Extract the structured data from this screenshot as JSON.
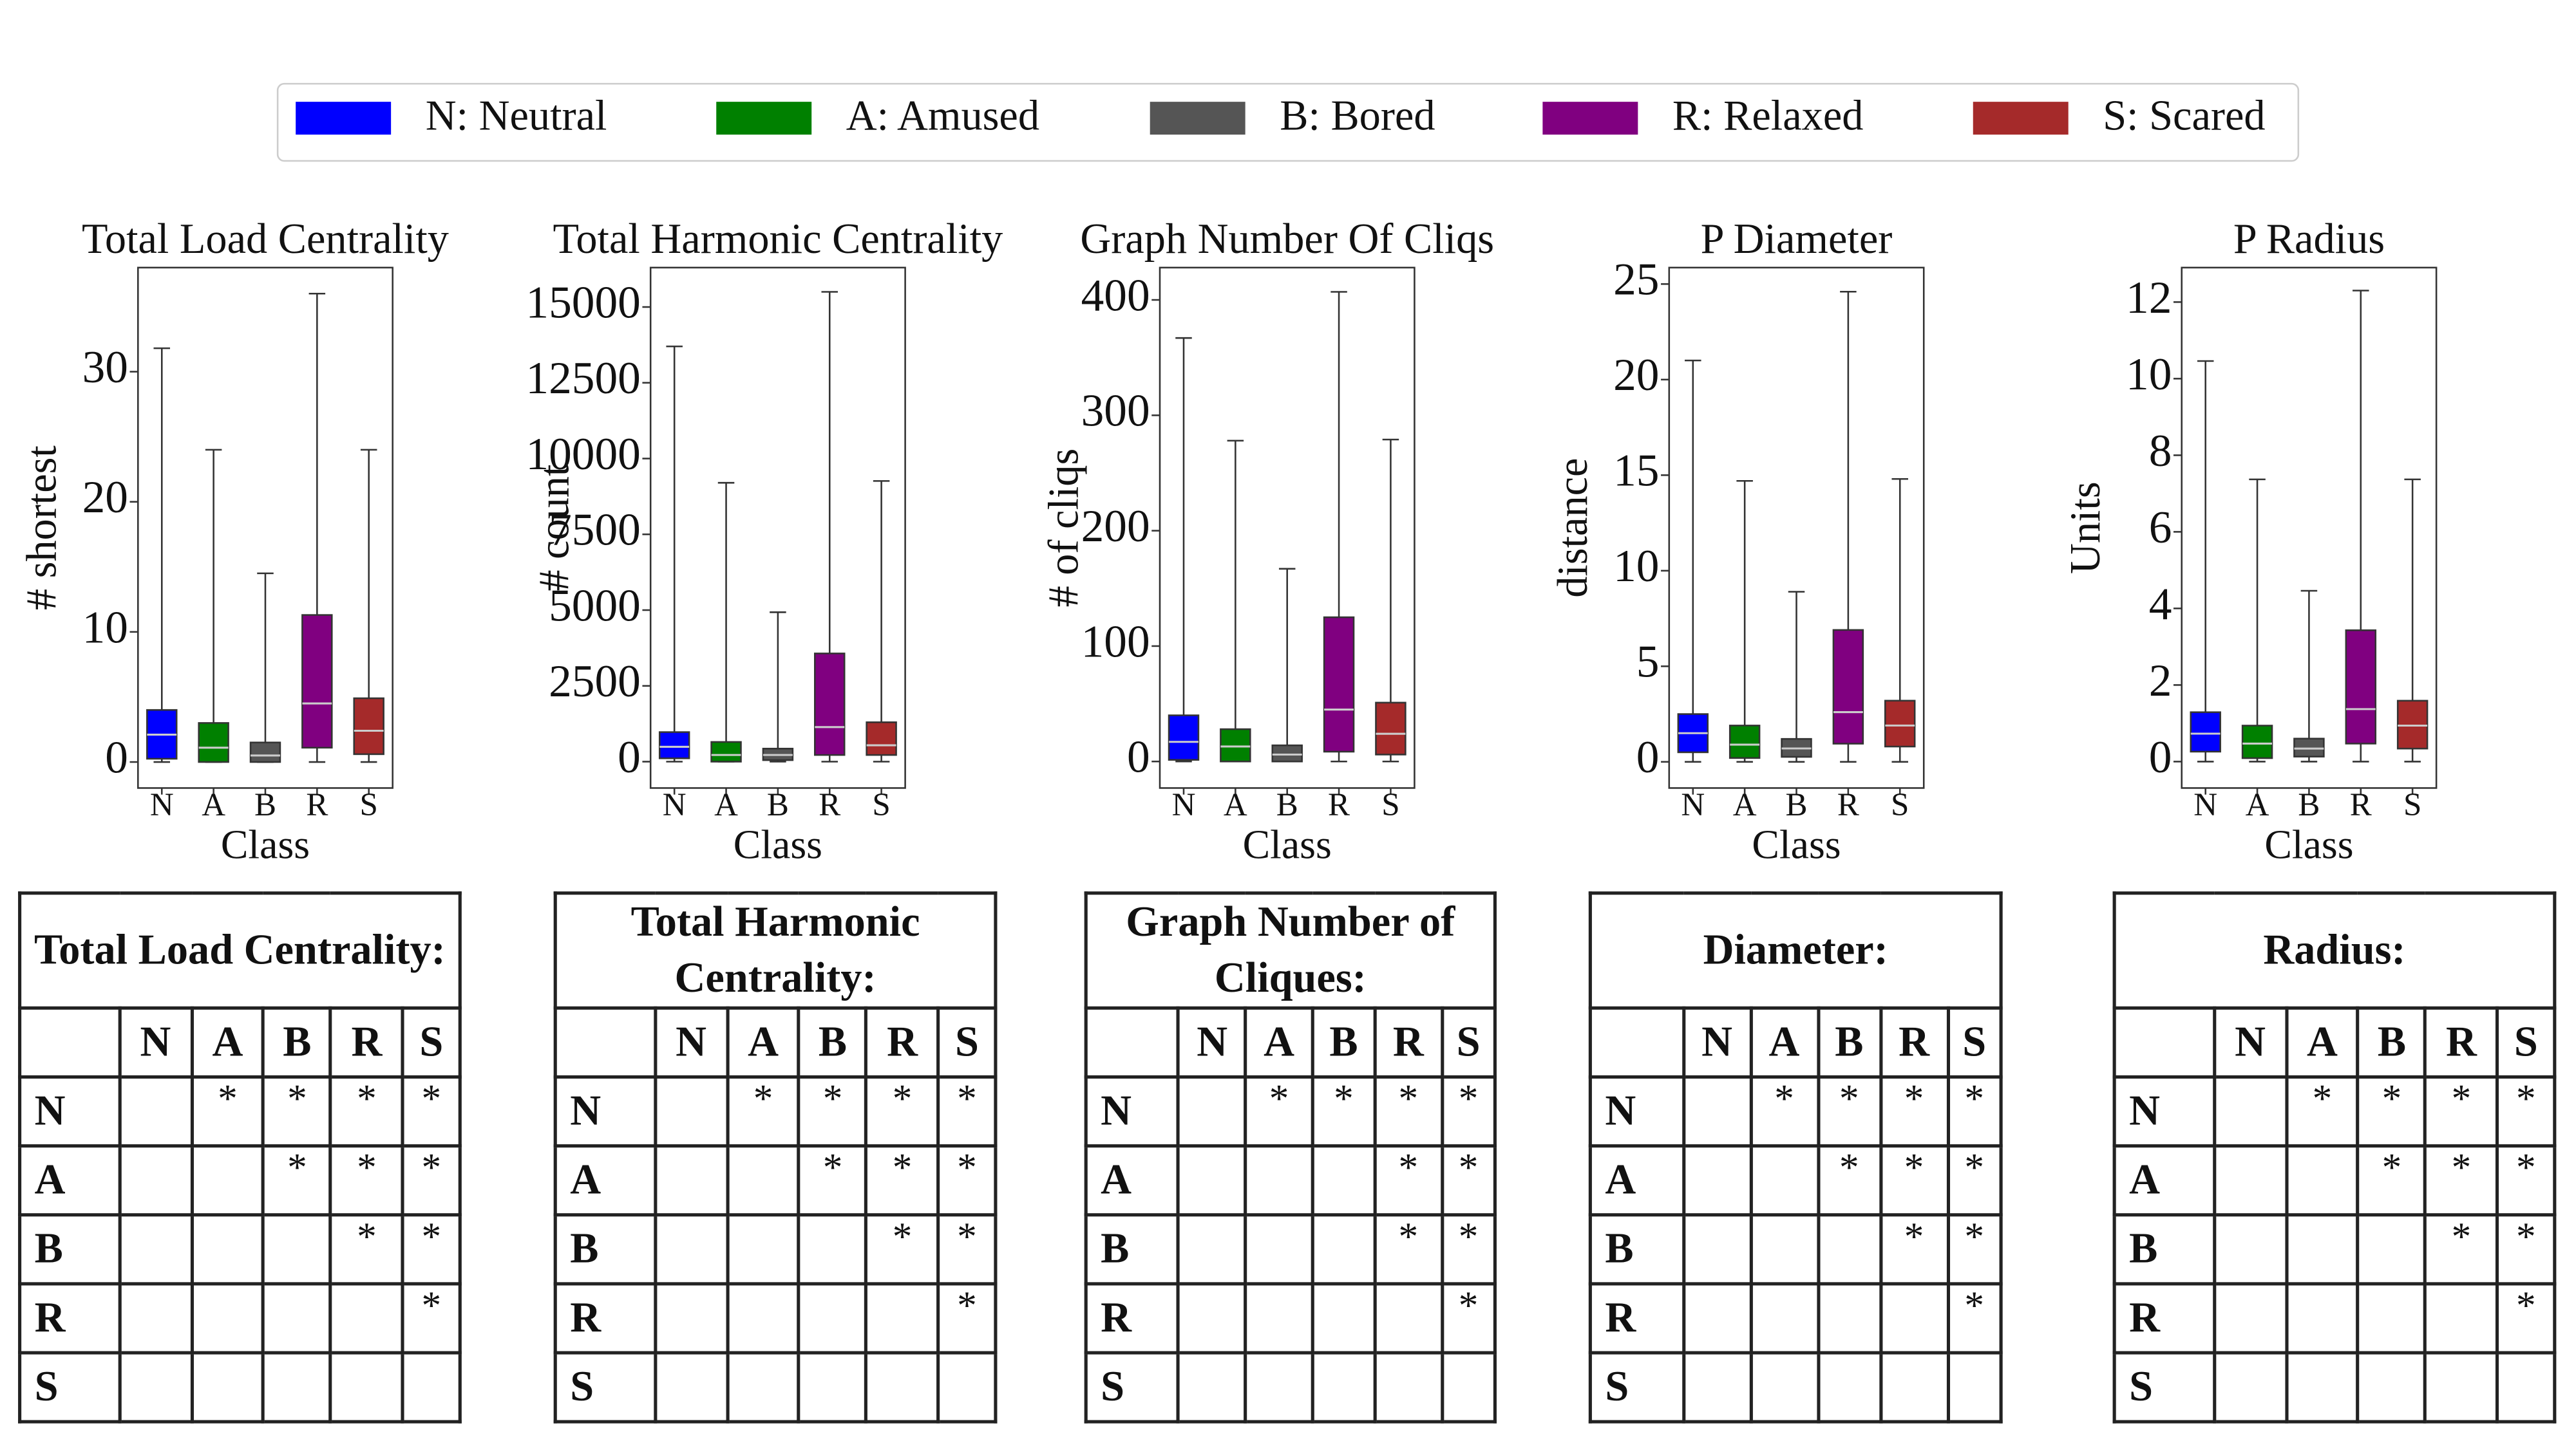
{
  "legend": {
    "entries": [
      {
        "label": "N: Neutral",
        "color": "#0000ff"
      },
      {
        "label": "A: Amused",
        "color": "#008000"
      },
      {
        "label": "B: Bored",
        "color": "#555555"
      },
      {
        "label": "R: Relaxed",
        "color": "#800080"
      },
      {
        "label": "S: Scared",
        "color": "#a52a2a"
      }
    ]
  },
  "chart_data": [
    {
      "type": "box",
      "title": "Total Load Centrality",
      "xlabel": "Class",
      "ylabel": "# shortest",
      "categories": [
        "N",
        "A",
        "B",
        "R",
        "S"
      ],
      "min": [
        0,
        0,
        0,
        0,
        0
      ],
      "q1": [
        0.25,
        0,
        0,
        1.1,
        0.6
      ],
      "median": [
        2.1,
        1.1,
        0.5,
        4.5,
        2.4
      ],
      "q3": [
        4.0,
        3.0,
        1.5,
        11.3,
        4.9
      ],
      "max": [
        31.8,
        24,
        14.5,
        36,
        24
      ],
      "ylim": [
        -2,
        38
      ],
      "yticks": [
        0,
        10,
        20,
        30
      ]
    },
    {
      "type": "box",
      "title": "Total Harmonic Centrality",
      "xlabel": "Class",
      "ylabel": "# count",
      "categories": [
        "N",
        "A",
        "B",
        "R",
        "S"
      ],
      "min": [
        0,
        0,
        0,
        0,
        0
      ],
      "q1": [
        110,
        0,
        50,
        220,
        220
      ],
      "median": [
        490,
        220,
        220,
        1140,
        540
      ],
      "q3": [
        975,
        650,
        430,
        3570,
        1300
      ],
      "max": [
        13700,
        9200,
        4930,
        15500,
        9260
      ],
      "ylim": [
        -870,
        16300
      ],
      "yticks": [
        0,
        2500,
        5000,
        7500,
        10000,
        12500,
        15000
      ]
    },
    {
      "type": "box",
      "title": "Graph Number Of Cliqs",
      "xlabel": "Class",
      "ylabel": "# of cliqs",
      "categories": [
        "N",
        "A",
        "B",
        "R",
        "S"
      ],
      "min": [
        0,
        0,
        0,
        0,
        0
      ],
      "q1": [
        1.4,
        0,
        0,
        8.5,
        6
      ],
      "median": [
        17,
        13,
        6,
        45,
        24
      ],
      "q3": [
        40,
        28,
        14,
        125,
        51
      ],
      "max": [
        367,
        278,
        167,
        407,
        279
      ],
      "ylim": [
        -23,
        428
      ],
      "yticks": [
        0,
        100,
        200,
        300,
        400
      ]
    },
    {
      "type": "box",
      "title": "P Diameter",
      "xlabel": "Class",
      "ylabel": "distance",
      "categories": [
        "N",
        "A",
        "B",
        "R",
        "S"
      ],
      "min": [
        0,
        0,
        0,
        0,
        0
      ],
      "q1": [
        0.5,
        0.2,
        0.26,
        0.95,
        0.8
      ],
      "median": [
        1.5,
        0.9,
        0.7,
        2.6,
        1.9
      ],
      "q3": [
        2.5,
        1.9,
        1.2,
        6.9,
        3.2
      ],
      "max": [
        21,
        14.7,
        8.9,
        24.6,
        14.8
      ],
      "ylim": [
        -1.37,
        25.86
      ],
      "yticks": [
        0,
        5,
        10,
        15,
        20,
        25
      ]
    },
    {
      "type": "box",
      "title": "P Radius",
      "xlabel": "Class",
      "ylabel": "Units",
      "categories": [
        "N",
        "A",
        "B",
        "R",
        "S"
      ],
      "min": [
        0,
        0,
        0,
        0,
        0
      ],
      "q1": [
        0.26,
        0.09,
        0.13,
        0.47,
        0.34
      ],
      "median": [
        0.73,
        0.47,
        0.34,
        1.37,
        0.94
      ],
      "q3": [
        1.29,
        0.94,
        0.6,
        3.43,
        1.59
      ],
      "max": [
        10.46,
        7.37,
        4.46,
        12.3,
        7.37
      ],
      "ylim": [
        -0.69,
        12.9
      ],
      "yticks": [
        0,
        2,
        4,
        6,
        8,
        10,
        12
      ]
    }
  ],
  "tables": [
    {
      "title": "Total Load Centrality:",
      "header": [
        "N",
        "A",
        "B",
        "R",
        "S"
      ],
      "rows": [
        {
          "label": "N",
          "cells": [
            null,
            "*",
            "*",
            "*",
            "*"
          ]
        },
        {
          "label": "A",
          "cells": [
            null,
            null,
            "*",
            "*",
            "*"
          ]
        },
        {
          "label": "B",
          "cells": [
            null,
            null,
            null,
            "*",
            "*"
          ]
        },
        {
          "label": "R",
          "cells": [
            null,
            null,
            null,
            null,
            "*"
          ]
        },
        {
          "label": "S",
          "cells": [
            null,
            null,
            null,
            null,
            null
          ]
        }
      ]
    },
    {
      "title": "Total Harmonic Centrality:",
      "header": [
        "N",
        "A",
        "B",
        "R",
        "S"
      ],
      "rows": [
        {
          "label": "N",
          "cells": [
            null,
            "*",
            "*",
            "*",
            "*"
          ]
        },
        {
          "label": "A",
          "cells": [
            null,
            null,
            "*",
            "*",
            "*"
          ]
        },
        {
          "label": "B",
          "cells": [
            null,
            null,
            null,
            "*",
            "*"
          ]
        },
        {
          "label": "R",
          "cells": [
            null,
            null,
            null,
            null,
            "*"
          ]
        },
        {
          "label": "S",
          "cells": [
            null,
            null,
            null,
            null,
            null
          ]
        }
      ]
    },
    {
      "title": "Graph Number of Cliques:",
      "header": [
        "N",
        "A",
        "B",
        "R",
        "S"
      ],
      "rows": [
        {
          "label": "N",
          "cells": [
            null,
            "*",
            "*",
            "*",
            "*"
          ]
        },
        {
          "label": "A",
          "cells": [
            null,
            null,
            null,
            "*",
            "*"
          ]
        },
        {
          "label": "B",
          "cells": [
            null,
            null,
            null,
            "*",
            "*"
          ]
        },
        {
          "label": "R",
          "cells": [
            null,
            null,
            null,
            null,
            "*"
          ]
        },
        {
          "label": "S",
          "cells": [
            null,
            null,
            null,
            null,
            null
          ]
        }
      ]
    },
    {
      "title": "Diameter:",
      "header": [
        "N",
        "A",
        "B",
        "R",
        "S"
      ],
      "rows": [
        {
          "label": "N",
          "cells": [
            null,
            "*",
            "*",
            "*",
            "*"
          ]
        },
        {
          "label": "A",
          "cells": [
            null,
            null,
            "*",
            "*",
            "*"
          ]
        },
        {
          "label": "B",
          "cells": [
            null,
            null,
            null,
            "*",
            "*"
          ]
        },
        {
          "label": "R",
          "cells": [
            null,
            null,
            null,
            null,
            "*"
          ]
        },
        {
          "label": "S",
          "cells": [
            null,
            null,
            null,
            null,
            null
          ]
        }
      ]
    },
    {
      "title": "Radius:",
      "header": [
        "N",
        "A",
        "B",
        "R",
        "S"
      ],
      "rows": [
        {
          "label": "N",
          "cells": [
            null,
            "*",
            "*",
            "*",
            "*"
          ]
        },
        {
          "label": "A",
          "cells": [
            null,
            null,
            "*",
            "*",
            "*"
          ]
        },
        {
          "label": "B",
          "cells": [
            null,
            null,
            null,
            "*",
            "*"
          ]
        },
        {
          "label": "R",
          "cells": [
            null,
            null,
            null,
            null,
            "*"
          ]
        },
        {
          "label": "S",
          "cells": [
            null,
            null,
            null,
            null,
            null
          ]
        }
      ]
    }
  ]
}
